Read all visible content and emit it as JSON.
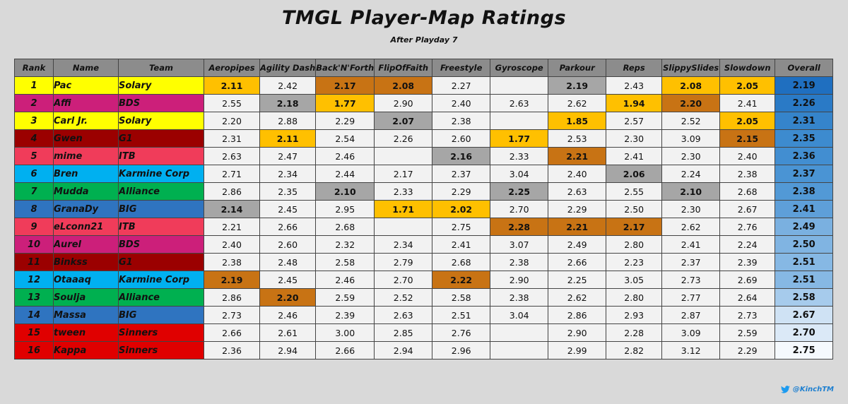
{
  "title": "TMGL Player-Map Ratings",
  "subtitle": "After Playday 7",
  "headers": {
    "rank": "Rank",
    "name": "Name",
    "team": "Team",
    "maps": [
      "Aeropipes",
      "Agility Dash",
      "Back'N'Forth",
      "FlipOfFaith",
      "Freestyle",
      "Gyroscope",
      "Parkour",
      "Reps",
      "SlippySlides",
      "Slowdown"
    ],
    "overall": "Overall"
  },
  "team_colors": {
    "Solary": "#ffff00",
    "BDS": "#cc1f7a",
    "G1": "#9b0000",
    "ITB": "#f03c5a",
    "Karmine Corp": "#00b0f0",
    "Alliance": "#00b050",
    "BIG": "#2f74c0",
    "Sinners": "#e00000"
  },
  "medal_colors": {
    "gold": "#ffc000",
    "silver": "#a6a6a6",
    "bronze": "#c87314"
  },
  "rows": [
    {
      "rank": "1",
      "name": "Pac",
      "team": "Solary",
      "values": [
        "2.11",
        "2.42",
        "2.17",
        "2.08",
        "2.27",
        "",
        "2.19",
        "2.43",
        "2.08",
        "2.05"
      ],
      "medals": [
        "gold",
        "",
        "bronze",
        "bronze",
        "",
        "",
        "silver",
        "",
        "gold",
        "gold"
      ],
      "overall": "2.19",
      "overall_color": "#1f6fc0"
    },
    {
      "rank": "2",
      "name": "Affi",
      "team": "BDS",
      "values": [
        "2.55",
        "2.18",
        "1.77",
        "2.90",
        "2.40",
        "2.63",
        "2.62",
        "1.94",
        "2.20",
        "2.41"
      ],
      "medals": [
        "",
        "silver",
        "gold",
        "",
        "",
        "",
        "",
        "gold",
        "bronze",
        ""
      ],
      "overall": "2.26",
      "overall_color": "#2a7ac6"
    },
    {
      "rank": "3",
      "name": "Carl Jr.",
      "team": "Solary",
      "values": [
        "2.20",
        "2.88",
        "2.29",
        "2.07",
        "2.38",
        "",
        "1.85",
        "2.57",
        "2.52",
        "2.05"
      ],
      "medals": [
        "",
        "",
        "",
        "silver",
        "",
        "",
        "gold",
        "",
        "",
        "gold"
      ],
      "overall": "2.31",
      "overall_color": "#3584cb"
    },
    {
      "rank": "4",
      "name": "Gwen",
      "team": "G1",
      "values": [
        "2.31",
        "2.11",
        "2.54",
        "2.26",
        "2.60",
        "1.77",
        "2.53",
        "2.30",
        "3.09",
        "2.15"
      ],
      "medals": [
        "",
        "gold",
        "",
        "",
        "",
        "gold",
        "",
        "",
        "",
        "bronze"
      ],
      "overall": "2.35",
      "overall_color": "#3d8bcf"
    },
    {
      "rank": "5",
      "name": "mime",
      "team": "ITB",
      "values": [
        "2.63",
        "2.47",
        "2.46",
        "",
        "2.16",
        "2.33",
        "2.21",
        "2.41",
        "2.30",
        "2.40"
      ],
      "medals": [
        "",
        "",
        "",
        "",
        "silver",
        "",
        "bronze",
        "",
        "",
        ""
      ],
      "overall": "2.36",
      "overall_color": "#428ed1"
    },
    {
      "rank": "6",
      "name": "Bren",
      "team": "Karmine Corp",
      "values": [
        "2.71",
        "2.34",
        "2.44",
        "2.17",
        "2.37",
        "3.04",
        "2.40",
        "2.06",
        "2.24",
        "2.38"
      ],
      "medals": [
        "",
        "",
        "",
        "",
        "",
        "",
        "",
        "silver",
        "",
        ""
      ],
      "overall": "2.37",
      "overall_color": "#4a94d4"
    },
    {
      "rank": "7",
      "name": "Mudda",
      "team": "Alliance",
      "values": [
        "2.86",
        "2.35",
        "2.10",
        "2.33",
        "2.29",
        "2.25",
        "2.63",
        "2.55",
        "2.10",
        "2.68"
      ],
      "medals": [
        "",
        "",
        "silver",
        "",
        "",
        "silver",
        "",
        "",
        "silver",
        ""
      ],
      "overall": "2.38",
      "overall_color": "#5299d6"
    },
    {
      "rank": "8",
      "name": "GranaDy",
      "team": "BIG",
      "values": [
        "2.14",
        "2.45",
        "2.95",
        "1.71",
        "2.02",
        "2.70",
        "2.29",
        "2.50",
        "2.30",
        "2.67"
      ],
      "medals": [
        "silver",
        "",
        "",
        "gold",
        "gold",
        "",
        "",
        "",
        "",
        ""
      ],
      "overall": "2.41",
      "overall_color": "#5e9fd9"
    },
    {
      "rank": "9",
      "name": "eLconn21",
      "team": "ITB",
      "values": [
        "2.21",
        "2.66",
        "2.68",
        "",
        "2.75",
        "2.28",
        "2.21",
        "2.17",
        "2.62",
        "2.76"
      ],
      "medals": [
        "",
        "",
        "",
        "",
        "",
        "bronze",
        "bronze",
        "bronze",
        "",
        ""
      ],
      "overall": "2.49",
      "overall_color": "#7ab0e0"
    },
    {
      "rank": "10",
      "name": "Aurel",
      "team": "BDS",
      "values": [
        "2.40",
        "2.60",
        "2.32",
        "2.34",
        "2.41",
        "3.07",
        "2.49",
        "2.80",
        "2.41",
        "2.24"
      ],
      "medals": [
        "",
        "",
        "",
        "",
        "",
        "",
        "",
        "",
        "",
        ""
      ],
      "overall": "2.50",
      "overall_color": "#80b4e2"
    },
    {
      "rank": "11",
      "name": "Binkss",
      "team": "G1",
      "values": [
        "2.38",
        "2.48",
        "2.58",
        "2.79",
        "2.68",
        "2.38",
        "2.66",
        "2.23",
        "2.37",
        "2.39"
      ],
      "medals": [
        "",
        "",
        "",
        "",
        "",
        "",
        "",
        "",
        "",
        ""
      ],
      "overall": "2.51",
      "overall_color": "#86b8e4"
    },
    {
      "rank": "12",
      "name": "Otaaaq",
      "team": "Karmine Corp",
      "values": [
        "2.19",
        "2.45",
        "2.46",
        "2.70",
        "2.22",
        "2.90",
        "2.25",
        "3.05",
        "2.73",
        "2.69"
      ],
      "medals": [
        "bronze",
        "",
        "",
        "",
        "bronze",
        "",
        "",
        "",
        "",
        ""
      ],
      "overall": "2.51",
      "overall_color": "#86b8e4"
    },
    {
      "rank": "13",
      "name": "Soulja",
      "team": "Alliance",
      "values": [
        "2.86",
        "2.20",
        "2.59",
        "2.52",
        "2.58",
        "2.38",
        "2.62",
        "2.80",
        "2.77",
        "2.64"
      ],
      "medals": [
        "",
        "bronze",
        "",
        "",
        "",
        "",
        "",
        "",
        "",
        ""
      ],
      "overall": "2.58",
      "overall_color": "#a6cbec"
    },
    {
      "rank": "14",
      "name": "Massa",
      "team": "BIG",
      "values": [
        "2.73",
        "2.46",
        "2.39",
        "2.63",
        "2.51",
        "3.04",
        "2.86",
        "2.93",
        "2.87",
        "2.73"
      ],
      "medals": [
        "",
        "",
        "",
        "",
        "",
        "",
        "",
        "",
        "",
        ""
      ],
      "overall": "2.67",
      "overall_color": "#cfe2f4"
    },
    {
      "rank": "15",
      "name": "tween",
      "team": "Sinners",
      "values": [
        "2.66",
        "2.61",
        "3.00",
        "2.85",
        "2.76",
        "",
        "2.90",
        "2.28",
        "3.09",
        "2.59"
      ],
      "medals": [
        "",
        "",
        "",
        "",
        "",
        "",
        "",
        "",
        "",
        ""
      ],
      "overall": "2.70",
      "overall_color": "#dbe9f7"
    },
    {
      "rank": "16",
      "name": "Kappa",
      "team": "Sinners",
      "values": [
        "2.36",
        "2.94",
        "2.66",
        "2.94",
        "2.96",
        "",
        "2.99",
        "2.82",
        "3.12",
        "2.29"
      ],
      "medals": [
        "",
        "",
        "",
        "",
        "",
        "",
        "",
        "",
        "",
        ""
      ],
      "overall": "2.75",
      "overall_color": "#f5f9fd"
    }
  ],
  "credit": "@KinchTM"
}
